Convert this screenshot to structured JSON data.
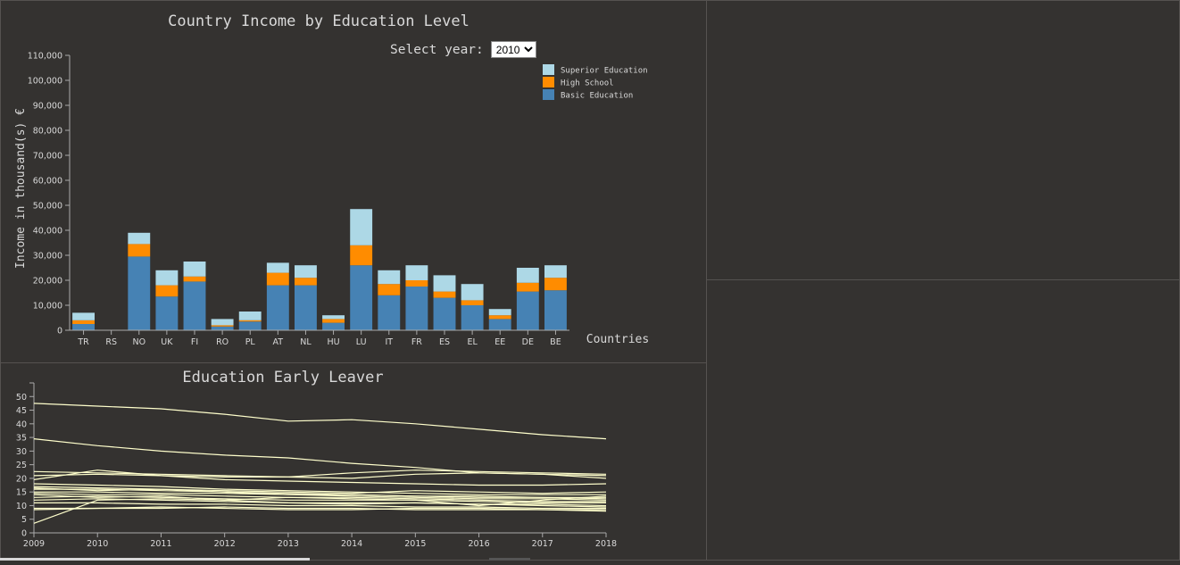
{
  "colors": {
    "superior": "#add8e6",
    "high": "#ff8c00",
    "basic": "#4682b4",
    "line": "#ffffcc",
    "axis": "#aaaaaa",
    "background": "#343230"
  },
  "bar_panel": {
    "title": "Country Income by Education Level",
    "select_label": "Select year:",
    "selected_year": "2010",
    "ylabel": "Income in thousand(s) €",
    "xlabel": "Countries"
  },
  "line_panel": {
    "title": "Education Early Leaver"
  },
  "chart_data": [
    {
      "type": "bar",
      "stacked": true,
      "title": "Country Income by Education Level",
      "xlabel": "Countries",
      "ylabel": "Income in thousand(s) €",
      "ylim": [
        0,
        110000
      ],
      "yticks": [
        0,
        10000,
        20000,
        30000,
        40000,
        50000,
        60000,
        70000,
        80000,
        90000,
        100000,
        110000
      ],
      "legend_position": "top-right",
      "categories": [
        "TR",
        "RS",
        "NO",
        "UK",
        "FI",
        "RO",
        "PL",
        "AT",
        "NL",
        "HU",
        "LU",
        "IT",
        "FR",
        "ES",
        "EL",
        "EE",
        "DE",
        "BE"
      ],
      "series": [
        {
          "name": "Basic Education",
          "color": "#4682b4",
          "values": [
            2500,
            0,
            29500,
            13500,
            19500,
            1500,
            3500,
            18000,
            18000,
            3000,
            26000,
            14000,
            17500,
            13000,
            10000,
            4500,
            15500,
            16000
          ]
        },
        {
          "name": "High School",
          "color": "#ff8c00",
          "values": [
            4000,
            0,
            34500,
            18000,
            21500,
            2000,
            4000,
            23000,
            21000,
            4500,
            34000,
            18500,
            20000,
            15500,
            12000,
            6000,
            19000,
            21000
          ]
        },
        {
          "name": "Superior Education",
          "color": "#add8e6",
          "values": [
            7000,
            0,
            39000,
            24000,
            27500,
            4500,
            7500,
            27000,
            26000,
            6000,
            48500,
            24000,
            26000,
            22000,
            18500,
            8500,
            25000,
            26000
          ]
        }
      ]
    },
    {
      "type": "line",
      "title": "Education Early Leaver",
      "xlabel": "",
      "ylabel": "",
      "x": [
        2009,
        2010,
        2011,
        2012,
        2013,
        2014,
        2015,
        2016,
        2017,
        2018
      ],
      "ylim": [
        0,
        55
      ],
      "yticks": [
        0,
        5,
        10,
        15,
        20,
        25,
        30,
        35,
        40,
        45,
        50
      ],
      "series": [
        {
          "values": [
            47.5,
            46.5,
            45.5,
            43.5,
            41,
            41.5,
            40,
            38,
            36,
            34.5
          ]
        },
        {
          "values": [
            34.5,
            32,
            30,
            28.5,
            27.5,
            25.5,
            24,
            22,
            21.5,
            21
          ]
        },
        {
          "values": [
            22.5,
            22,
            21.5,
            21,
            20.5,
            20,
            21.5,
            22,
            21.5,
            20
          ]
        },
        {
          "values": [
            21,
            21.5,
            21,
            20.5,
            20.5,
            22,
            23,
            22.5,
            22,
            21.5
          ]
        },
        {
          "values": [
            3.5,
            12,
            12.5,
            12,
            11,
            10.5,
            11,
            10.5,
            10,
            9.5
          ]
        },
        {
          "values": [
            19.5,
            23,
            21,
            19.5,
            19,
            18.5,
            18,
            17.5,
            17.5,
            18
          ]
        },
        {
          "values": [
            18,
            17.5,
            17,
            16,
            15.5,
            15,
            14.5,
            14,
            14,
            14
          ]
        },
        {
          "values": [
            17,
            16.5,
            16,
            15,
            14.5,
            14,
            13.5,
            13.5,
            13,
            13
          ]
        },
        {
          "values": [
            16,
            16,
            15.5,
            15,
            14,
            14,
            13.5,
            13,
            13,
            12.5
          ]
        },
        {
          "values": [
            15,
            15,
            14.5,
            14.5,
            14,
            13.5,
            13,
            12.5,
            12.5,
            12
          ]
        },
        {
          "values": [
            14.5,
            14,
            14,
            13.5,
            13,
            13,
            12.5,
            12,
            11.5,
            11.5
          ]
        },
        {
          "values": [
            13,
            13.5,
            13,
            12.5,
            12,
            12,
            12,
            11.5,
            11,
            11
          ]
        },
        {
          "values": [
            12,
            12.5,
            12,
            11.5,
            11,
            11,
            11,
            10.5,
            10.5,
            10
          ]
        },
        {
          "values": [
            11,
            11,
            10.5,
            10.5,
            10,
            10,
            9.5,
            9.5,
            9,
            9
          ]
        },
        {
          "values": [
            9,
            9,
            9,
            9.5,
            9,
            9,
            8.5,
            8.5,
            8.5,
            8
          ]
        },
        {
          "values": [
            8.5,
            9,
            9.5,
            9,
            8.5,
            8.5,
            9,
            9,
            8.5,
            8.5
          ]
        },
        {
          "values": [
            16.5,
            15.5,
            16,
            15.5,
            15,
            14.5,
            15.5,
            15,
            14.5,
            15
          ]
        },
        {
          "values": [
            14,
            13,
            13.5,
            12,
            13,
            12.5,
            12,
            10,
            12,
            13.5
          ]
        }
      ]
    }
  ]
}
